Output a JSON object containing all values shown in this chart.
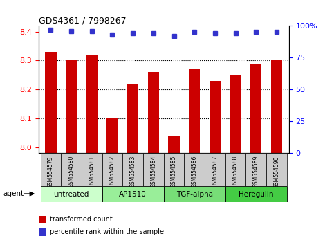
{
  "title": "GDS4361 / 7998267",
  "categories": [
    "GSM554579",
    "GSM554580",
    "GSM554581",
    "GSM554582",
    "GSM554583",
    "GSM554584",
    "GSM554585",
    "GSM554586",
    "GSM554587",
    "GSM554588",
    "GSM554589",
    "GSM554590"
  ],
  "bar_values": [
    8.33,
    8.3,
    8.32,
    8.1,
    8.22,
    8.26,
    8.04,
    8.27,
    8.23,
    8.25,
    8.29,
    8.3
  ],
  "percentile_values": [
    97,
    96,
    96,
    93,
    94,
    94,
    92,
    95,
    94,
    94,
    95,
    95
  ],
  "bar_color": "#cc0000",
  "dot_color": "#3333cc",
  "ylim_left": [
    7.98,
    8.42
  ],
  "ylim_right": [
    0,
    100
  ],
  "yticks_left": [
    8.0,
    8.1,
    8.2,
    8.3,
    8.4
  ],
  "yticks_right": [
    0,
    25,
    50,
    75,
    100
  ],
  "grid_values": [
    8.1,
    8.2,
    8.3
  ],
  "agent_groups": [
    {
      "label": "untreated",
      "start": 0,
      "end": 3,
      "color": "#ccffcc"
    },
    {
      "label": "AP1510",
      "start": 3,
      "end": 6,
      "color": "#99ee99"
    },
    {
      "label": "TGF-alpha",
      "start": 6,
      "end": 9,
      "color": "#77dd77"
    },
    {
      "label": "Heregulin",
      "start": 9,
      "end": 12,
      "color": "#44cc44"
    }
  ],
  "legend_entries": [
    {
      "label": "transformed count",
      "color": "#cc0000"
    },
    {
      "label": "percentile rank within the sample",
      "color": "#3333cc"
    }
  ],
  "agent_label": "agent",
  "background_color": "#ffffff",
  "label_bg": "#cccccc",
  "bar_width": 0.55
}
